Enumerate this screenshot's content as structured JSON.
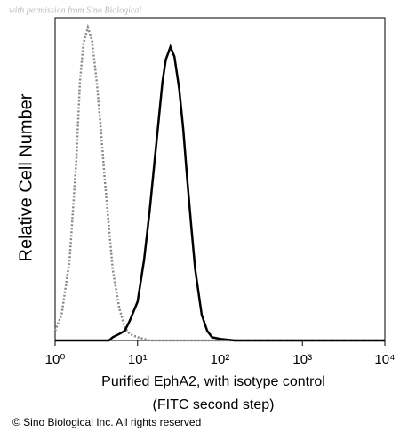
{
  "chart_data": {
    "type": "line",
    "watermark": "with permission from Sino Biological",
    "ylabel": "Relative Cell Number",
    "xlabel": [
      "Purified EphA2, with isotype control",
      "(FITC second step)"
    ],
    "copyright": "© Sino Biological Inc. All rights reserved",
    "xscale": "log",
    "xlim": [
      1,
      10000
    ],
    "ylim": [
      0,
      100
    ],
    "xticks": [
      {
        "value": 1,
        "label": "10⁰"
      },
      {
        "value": 10,
        "label": "10¹"
      },
      {
        "value": 100,
        "label": "10²"
      },
      {
        "value": 1000,
        "label": "10³"
      },
      {
        "value": 10000,
        "label": "10⁴"
      }
    ],
    "x": [
      1,
      1.2,
      1.5,
      1.8,
      2,
      2.2,
      2.5,
      2.8,
      3.2,
      3.6,
      4,
      4.5,
      5,
      6,
      7,
      8,
      10,
      12,
      14,
      16,
      18,
      20,
      22,
      25,
      28,
      32,
      36,
      40,
      45,
      50,
      60,
      70,
      80,
      100,
      150,
      200,
      500,
      1000,
      10000
    ],
    "series": [
      {
        "name": "isotype control",
        "color": "#8a8a8a",
        "dash": "2,2",
        "values": [
          3,
          8,
          25,
          55,
          80,
          92,
          97,
          93,
          80,
          65,
          50,
          35,
          22,
          10,
          4,
          2,
          1,
          0.5,
          0,
          0,
          0,
          0,
          0,
          0,
          0,
          0,
          0,
          0,
          0,
          0,
          0,
          0,
          0,
          0,
          0,
          0,
          0,
          0,
          0
        ]
      },
      {
        "name": "EphA2",
        "color": "#000000",
        "dash": "none",
        "values": [
          0,
          0,
          0,
          0,
          0,
          0,
          0,
          0,
          0,
          0,
          0,
          0,
          1,
          2,
          3,
          6,
          12,
          25,
          40,
          55,
          68,
          80,
          87,
          91,
          88,
          78,
          65,
          50,
          35,
          22,
          8,
          3,
          1,
          0.5,
          0,
          0,
          0,
          0,
          0
        ]
      }
    ]
  }
}
